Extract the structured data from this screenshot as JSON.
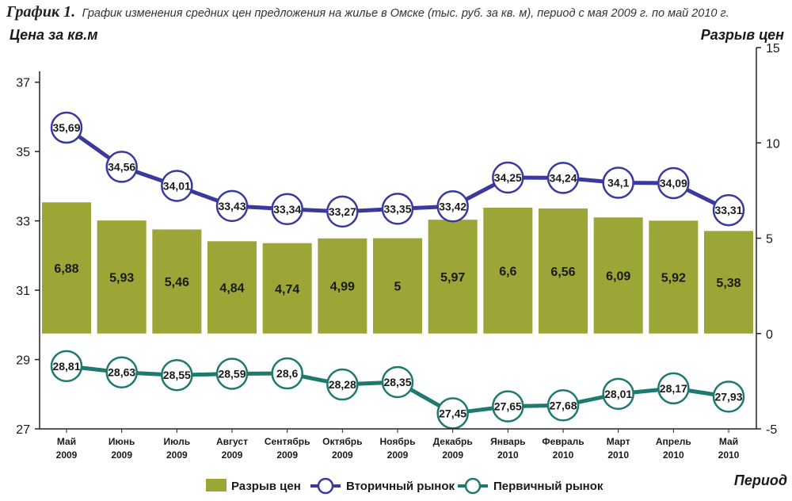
{
  "header": {
    "figure_label": "График 1.",
    "title": "График изменения средних цен предложения на жилье в Омске (тыс. руб. за кв. м), период с мая 2009 г. по май 2010 г."
  },
  "colors": {
    "bar": "#9ba637",
    "secondary": "#3a3a9e",
    "primary": "#1e7a6e",
    "marker_fill": "#ffffff"
  },
  "chart_data": {
    "type": "bar+line",
    "title": "График изменения средних цен предложения на жилье в Омске (тыс. руб. за кв. м), период с мая 2009 г. по май 2010 г.",
    "ylabel_left": "Цена за кв.м",
    "ylabel_right": "Разрыв цен",
    "xlabel": "Период",
    "categories": [
      [
        "Май",
        "2009"
      ],
      [
        "Июнь",
        "2009"
      ],
      [
        "Июль",
        "2009"
      ],
      [
        "Август",
        "2009"
      ],
      [
        "Сентябрь",
        "2009"
      ],
      [
        "Октябрь",
        "2009"
      ],
      [
        "Ноябрь",
        "2009"
      ],
      [
        "Декабрь",
        "2009"
      ],
      [
        "Январь",
        "2010"
      ],
      [
        "Февраль",
        "2010"
      ],
      [
        "Март",
        "2010"
      ],
      [
        "Апрель",
        "2010"
      ],
      [
        "Май",
        "2010"
      ]
    ],
    "left_axis": {
      "min": 27,
      "max": 38,
      "ticks": [
        27,
        29,
        31,
        33,
        35,
        37
      ]
    },
    "right_axis": {
      "min": -5,
      "max": 15,
      "ticks": [
        -5,
        0,
        5,
        10,
        15
      ]
    },
    "series": [
      {
        "name": "Разрыв цен",
        "kind": "bar",
        "axis": "right",
        "values": [
          6.88,
          5.93,
          5.46,
          4.84,
          4.74,
          4.99,
          5,
          5.97,
          6.6,
          6.56,
          6.09,
          5.92,
          5.38
        ],
        "labels": [
          "6,88",
          "5,93",
          "5,46",
          "4,84",
          "4,74",
          "4,99",
          "5",
          "5,97",
          "6,6",
          "6,56",
          "6,09",
          "5,92",
          "5,38"
        ]
      },
      {
        "name": "Вторичный рынок",
        "kind": "line",
        "axis": "left",
        "values": [
          35.69,
          34.56,
          34.01,
          33.43,
          33.34,
          33.27,
          33.35,
          33.42,
          34.25,
          34.24,
          34.1,
          34.09,
          33.31
        ],
        "labels": [
          "35,69",
          "34,56",
          "34,01",
          "33,43",
          "33,34",
          "33,27",
          "33,35",
          "33,42",
          "34,25",
          "34,24",
          "34,1",
          "34,09",
          "33,31"
        ]
      },
      {
        "name": "Первичный рынок",
        "kind": "line",
        "axis": "left",
        "values": [
          28.81,
          28.63,
          28.55,
          28.59,
          28.6,
          28.28,
          28.35,
          27.45,
          27.65,
          27.68,
          28.01,
          28.17,
          27.93
        ],
        "labels": [
          "28,81",
          "28,63",
          "28,55",
          "28,59",
          "28,6",
          "28,28",
          "28,35",
          "27,45",
          "27,65",
          "27,68",
          "28,01",
          "28,17",
          "27,93"
        ]
      }
    ],
    "legend": [
      "Разрыв цен",
      "Вторичный рынок",
      "Первичный рынок"
    ],
    "legend_position": "bottom"
  }
}
